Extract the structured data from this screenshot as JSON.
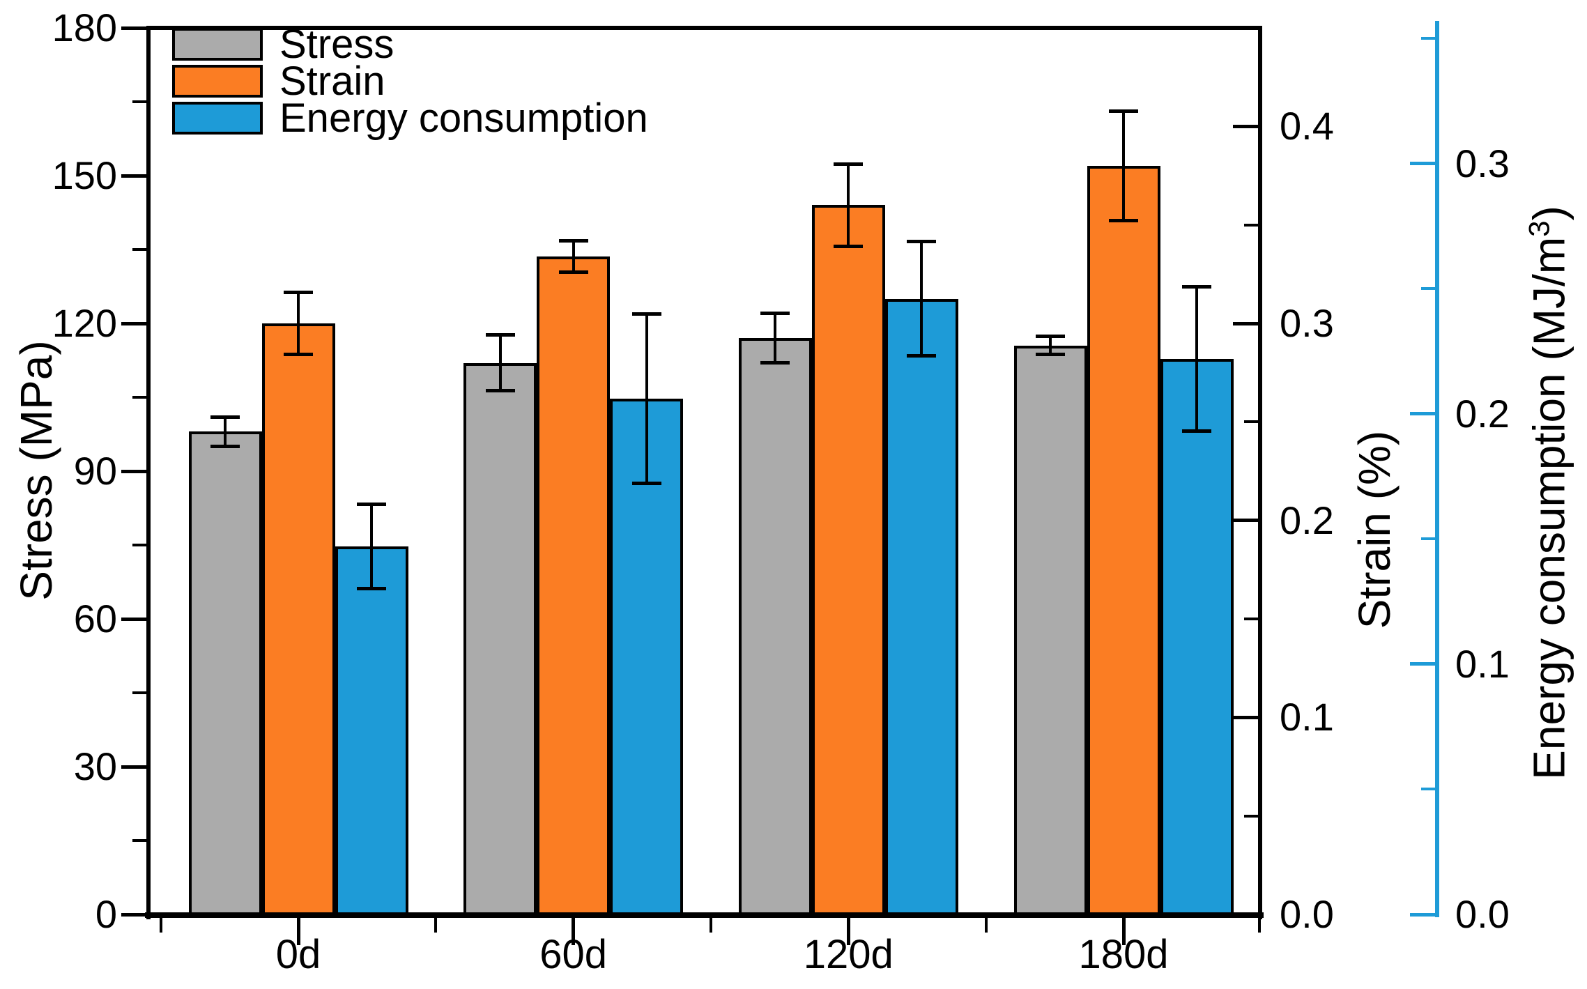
{
  "chart_data": {
    "type": "bar",
    "title": "",
    "grid": false,
    "legend_position": "top-left",
    "categories": [
      "0d",
      "60d",
      "120d",
      "180d"
    ],
    "series": [
      {
        "name": "Stress",
        "axis": "stress",
        "color": "#ABABAB",
        "values": [
          98,
          112,
          117,
          115.5
        ],
        "errors": [
          3,
          5.7,
          5.1,
          1.9
        ]
      },
      {
        "name": "Strain",
        "axis": "strain",
        "color": "#FB7D23",
        "values": [
          0.3,
          0.334,
          0.36,
          0.38
        ],
        "errors": [
          0.016,
          0.008,
          0.021,
          0.028
        ]
      },
      {
        "name": "Energy consumption",
        "axis": "energy",
        "color": "#1E9BD7",
        "values": [
          0.147,
          0.206,
          0.246,
          0.222
        ],
        "errors": [
          0.017,
          0.034,
          0.023,
          0.029
        ]
      }
    ],
    "axes": {
      "stress": {
        "label": "Stress (MPa)",
        "side": "left",
        "color": "#000000",
        "min": 0,
        "max": 180,
        "major_ticks": [
          0,
          30,
          60,
          90,
          120,
          150,
          180
        ],
        "minor_ticks": [
          15,
          45,
          75,
          105,
          135,
          165
        ],
        "tick_labels": [
          "0",
          "30",
          "60",
          "90",
          "120",
          "150",
          "180"
        ]
      },
      "strain": {
        "label": "Strain (%)",
        "side": "right",
        "color": "#000000",
        "min": 0,
        "max": 0.45,
        "major_ticks": [
          0,
          0.1,
          0.2,
          0.3,
          0.4
        ],
        "minor_ticks": [
          0.05,
          0.15,
          0.25,
          0.35
        ],
        "tick_labels": [
          "0.0",
          "0.1",
          "0.2",
          "0.3",
          "0.4"
        ]
      },
      "energy": {
        "label_prefix": "Energy consumption (MJ/m",
        "label_sup": "3",
        "label_suffix": ")",
        "side": "right-outer",
        "color": "#1E9BD7",
        "min": 0,
        "max": 0.357,
        "major_ticks": [
          0,
          0.1,
          0.2,
          0.3
        ],
        "minor_ticks": [
          0.05,
          0.15,
          0.25,
          0.35
        ],
        "tick_labels": [
          "0.0",
          "0.1",
          "0.2",
          "0.3"
        ]
      }
    }
  }
}
